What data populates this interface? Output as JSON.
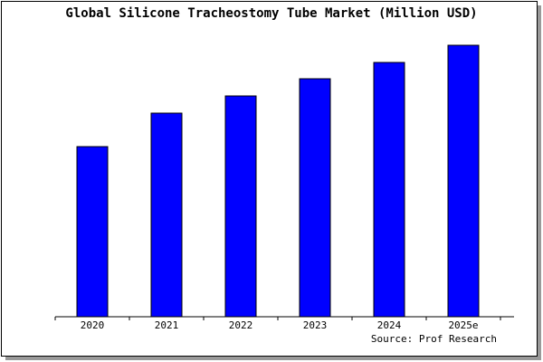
{
  "chart_data": {
    "type": "bar",
    "title": "Global Silicone Tracheostomy Tube Market (Million USD)",
    "categories": [
      "2020",
      "2021",
      "2022",
      "2023",
      "2024",
      "2025e"
    ],
    "values": [
      188,
      225,
      244,
      263,
      281,
      300
    ],
    "color": "#0000ff",
    "ylim": [
      0,
      302
    ],
    "source": "Source: Prof Research"
  }
}
